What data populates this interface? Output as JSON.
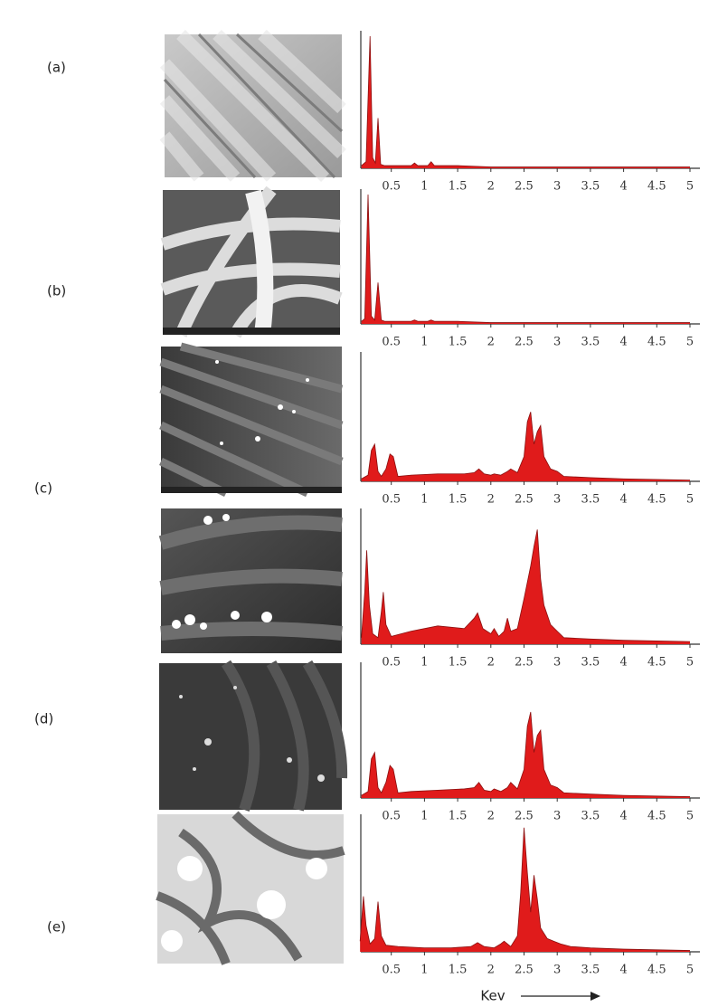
{
  "panel_labels": [
    "(a)",
    "(b)",
    "(c)",
    "(d)",
    "(e)"
  ],
  "chart_data": [
    {
      "type": "area",
      "color": "#e01b1b",
      "xlim": [
        0,
        5.15
      ],
      "ylim": [
        0,
        100
      ],
      "xticks": [
        0.5,
        1,
        1.5,
        2,
        2.5,
        3,
        3.5,
        4,
        4.5,
        5
      ],
      "x": [
        0.05,
        0.12,
        0.18,
        0.22,
        0.26,
        0.3,
        0.34,
        0.4,
        0.5,
        0.8,
        0.85,
        0.9,
        1.05,
        1.1,
        1.15,
        1.5,
        2,
        3,
        4,
        5
      ],
      "values": [
        2,
        5,
        100,
        8,
        4,
        38,
        3,
        2,
        2,
        2,
        4,
        2,
        2,
        5,
        2,
        2,
        1,
        1,
        1,
        1
      ]
    },
    {
      "type": "area",
      "color": "#e01b1b",
      "xlim": [
        0,
        5.15
      ],
      "ylim": [
        0,
        100
      ],
      "xticks": [
        0.5,
        1,
        1.5,
        2,
        2.5,
        3,
        3.5,
        4,
        4.5,
        5
      ],
      "x": [
        0.05,
        0.1,
        0.15,
        0.2,
        0.25,
        0.3,
        0.35,
        0.4,
        0.5,
        0.8,
        0.85,
        0.9,
        1.05,
        1.1,
        1.15,
        1.5,
        2,
        3,
        4,
        5
      ],
      "values": [
        2,
        4,
        100,
        6,
        3,
        32,
        3,
        2,
        2,
        2,
        3,
        2,
        2,
        3,
        2,
        2,
        1,
        1,
        1,
        1
      ]
    },
    {
      "type": "area",
      "color": "#e01b1b",
      "xlim": [
        0,
        5.15
      ],
      "ylim": [
        0,
        100
      ],
      "xticks": [
        0.5,
        1,
        1.5,
        2,
        2.5,
        3,
        3.5,
        4,
        4.5,
        5
      ],
      "x": [
        0.05,
        0.15,
        0.2,
        0.25,
        0.3,
        0.35,
        0.42,
        0.48,
        0.53,
        0.6,
        0.8,
        1.2,
        1.6,
        1.75,
        1.82,
        1.9,
        2.0,
        2.05,
        2.15,
        2.25,
        2.3,
        2.4,
        2.5,
        2.55,
        2.6,
        2.65,
        2.7,
        2.75,
        2.8,
        2.9,
        3.0,
        3.1,
        3.5,
        4,
        5
      ],
      "values": [
        2,
        5,
        25,
        30,
        8,
        4,
        10,
        22,
        20,
        4,
        5,
        6,
        6,
        7,
        10,
        6,
        5,
        6,
        5,
        8,
        10,
        7,
        20,
        48,
        56,
        30,
        40,
        45,
        20,
        10,
        8,
        4,
        3,
        2,
        1
      ]
    },
    {
      "type": "area",
      "color": "#e01b1b",
      "xlim": [
        0,
        5.15
      ],
      "ylim": [
        0,
        100
      ],
      "xticks": [
        0.5,
        1,
        1.5,
        2,
        2.5,
        3,
        3.5,
        4,
        4.5,
        5
      ],
      "x": [
        0.05,
        0.1,
        0.13,
        0.17,
        0.22,
        0.3,
        0.35,
        0.38,
        0.42,
        0.5,
        0.8,
        1.2,
        1.6,
        1.75,
        1.8,
        1.88,
        2.0,
        2.05,
        2.12,
        2.2,
        2.25,
        2.3,
        2.4,
        2.5,
        2.6,
        2.65,
        2.7,
        2.75,
        2.8,
        2.9,
        3.0,
        3.1,
        3.5,
        4,
        5
      ],
      "values": [
        5,
        40,
        72,
        30,
        8,
        5,
        25,
        40,
        15,
        6,
        10,
        14,
        12,
        20,
        24,
        12,
        8,
        12,
        6,
        10,
        20,
        10,
        12,
        35,
        60,
        75,
        88,
        50,
        30,
        15,
        10,
        5,
        4,
        3,
        2
      ]
    },
    {
      "type": "area",
      "color": "#e01b1b",
      "xlim": [
        0,
        5.15
      ],
      "ylim": [
        0,
        100
      ],
      "xticks": [
        0.5,
        1,
        1.5,
        2,
        2.5,
        3,
        3.5,
        4,
        4.5,
        5
      ],
      "x": [
        0.05,
        0.15,
        0.2,
        0.25,
        0.3,
        0.35,
        0.42,
        0.48,
        0.53,
        0.6,
        0.8,
        1.2,
        1.6,
        1.75,
        1.82,
        1.9,
        2.0,
        2.05,
        2.15,
        2.25,
        2.3,
        2.4,
        2.5,
        2.55,
        2.6,
        2.65,
        2.7,
        2.75,
        2.8,
        2.9,
        3.0,
        3.1,
        3.5,
        4,
        5
      ],
      "values": [
        2,
        5,
        30,
        35,
        8,
        4,
        12,
        25,
        22,
        4,
        5,
        6,
        7,
        8,
        12,
        6,
        5,
        7,
        5,
        8,
        12,
        7,
        22,
        55,
        66,
        35,
        48,
        52,
        22,
        10,
        8,
        4,
        3,
        2,
        1
      ]
    },
    {
      "type": "area",
      "color": "#e01b1b",
      "xlim": [
        0,
        5.15
      ],
      "ylim": [
        0,
        100
      ],
      "xticks": [
        0.5,
        1,
        1.5,
        2,
        2.5,
        3,
        3.5,
        4,
        4.5,
        5
      ],
      "x": [
        0.03,
        0.08,
        0.12,
        0.18,
        0.25,
        0.3,
        0.35,
        0.42,
        0.6,
        1.0,
        1.4,
        1.7,
        1.8,
        1.9,
        2.05,
        2.15,
        2.2,
        2.3,
        2.4,
        2.45,
        2.5,
        2.55,
        2.6,
        2.65,
        2.7,
        2.75,
        2.85,
        2.95,
        3.05,
        3.2,
        3.5,
        4,
        5
      ],
      "values": [
        8,
        42,
        20,
        6,
        10,
        38,
        12,
        5,
        4,
        3,
        3,
        4,
        7,
        4,
        3,
        6,
        8,
        4,
        12,
        45,
        94,
        60,
        30,
        58,
        40,
        18,
        10,
        8,
        6,
        4,
        3,
        2,
        1
      ],
      "xlabel": "Kev"
    }
  ]
}
